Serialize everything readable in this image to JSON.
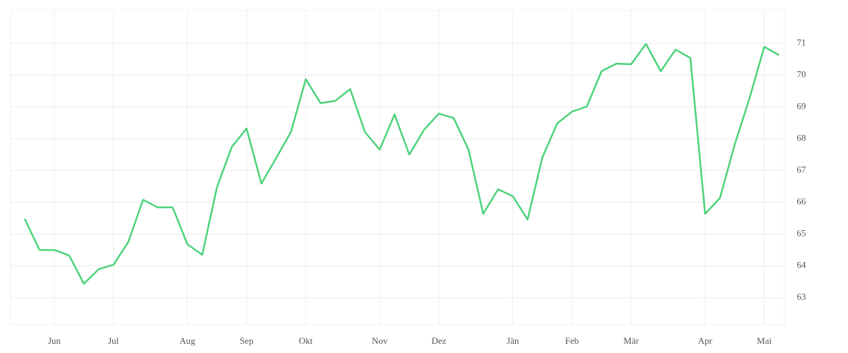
{
  "chart_data": {
    "type": "line",
    "categories": [
      null,
      null,
      "Jun",
      null,
      null,
      null,
      "Jul",
      null,
      null,
      null,
      null,
      "Aug",
      null,
      null,
      null,
      "Sep",
      null,
      null,
      null,
      "Okt",
      null,
      null,
      null,
      null,
      "Nov",
      null,
      null,
      null,
      "Dez",
      null,
      null,
      null,
      null,
      "Jän",
      null,
      null,
      null,
      "Feb",
      null,
      null,
      null,
      "Mär",
      null,
      null,
      null,
      null,
      "Apr",
      null,
      null,
      null,
      "Mai",
      null
    ],
    "series": [
      {
        "color": "#4cd37a",
        "values": [
          65.48,
          64.5,
          64.5,
          64.33,
          63.44,
          63.9,
          64.04,
          64.75,
          66.08,
          65.84,
          65.84,
          64.68,
          64.35,
          66.48,
          67.74,
          68.32,
          66.59,
          67.39,
          68.21,
          69.87,
          69.12,
          69.19,
          69.56,
          68.21,
          67.66,
          68.76,
          67.5,
          68.28,
          68.79,
          68.65,
          67.66,
          65.64,
          66.41,
          66.19,
          65.46,
          67.41,
          68.48,
          68.85,
          69.01,
          70.12,
          70.36,
          70.34,
          70.98,
          70.12,
          70.8,
          70.54,
          65.64,
          66.13,
          67.81,
          69.27,
          70.89,
          70.63
        ]
      }
    ],
    "ylim": [
      62.15,
      72.05
    ],
    "yticks": [
      63,
      64,
      65,
      66,
      67,
      68,
      69,
      70,
      71
    ],
    "grid": true,
    "y_axis_side": "right"
  }
}
